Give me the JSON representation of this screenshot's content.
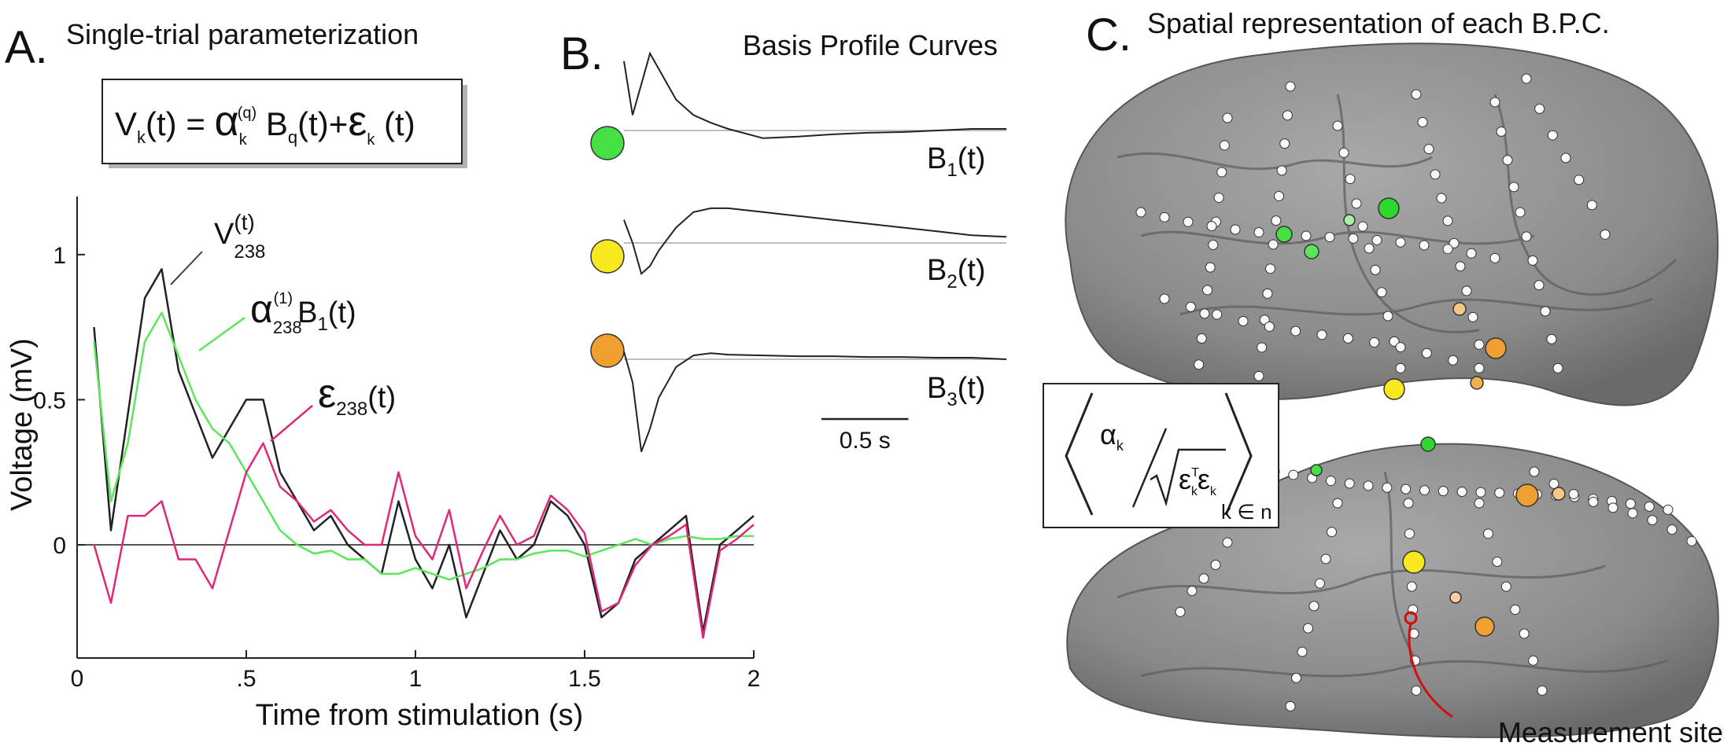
{
  "chart_data": [
    {
      "type": "line",
      "panel_label": "A.",
      "title": "Single-trial parameterization",
      "formula": [
        "V",
        "k",
        "(t) = ",
        "α",
        "k",
        "(q)",
        " B",
        "q",
        "(t)+",
        "ε",
        "k",
        " (t)"
      ],
      "x_label": "Time from stimulation (s)",
      "y_label": "Voltage (mV)",
      "xlim": [
        0,
        2
      ],
      "ylim": [
        -0.39,
        1.2
      ],
      "xticks": [
        0,
        {
          "value": 0.5,
          "label": ".5"
        },
        1,
        1.5,
        2
      ],
      "yticks": [
        0,
        0.5,
        1
      ],
      "x": [
        0.05,
        0.1,
        0.15,
        0.2,
        0.25,
        0.3,
        0.35,
        0.4,
        0.45,
        0.5,
        0.55,
        0.6,
        0.65,
        0.7,
        0.75,
        0.8,
        0.85,
        0.9,
        0.95,
        1.0,
        1.05,
        1.1,
        1.15,
        1.2,
        1.25,
        1.3,
        1.35,
        1.4,
        1.45,
        1.5,
        1.55,
        1.6,
        1.65,
        1.7,
        1.75,
        1.8,
        1.85,
        1.9,
        1.95,
        2.0
      ],
      "series": [
        {
          "color": "#222222",
          "values": [
            0.75,
            0.05,
            0.45,
            0.85,
            0.95,
            0.6,
            0.45,
            0.3,
            0.4,
            0.5,
            0.5,
            0.25,
            0.15,
            0.05,
            0.1,
            0.0,
            -0.05,
            -0.1,
            0.15,
            -0.05,
            -0.15,
            0.0,
            -0.25,
            -0.1,
            0.05,
            -0.05,
            0.0,
            0.15,
            0.1,
            0.0,
            -0.25,
            -0.2,
            -0.05,
            0.0,
            0.05,
            0.1,
            -0.3,
            0.0,
            0.05,
            0.1
          ]
        },
        {
          "color": "#5ce65c",
          "values": [
            0.7,
            0.15,
            0.35,
            0.7,
            0.8,
            0.65,
            0.5,
            0.4,
            0.35,
            0.25,
            0.15,
            0.05,
            0.0,
            -0.03,
            -0.02,
            -0.05,
            -0.05,
            -0.1,
            -0.1,
            -0.08,
            -0.1,
            -0.12,
            -0.1,
            -0.08,
            -0.05,
            -0.05,
            -0.03,
            -0.02,
            -0.02,
            -0.04,
            -0.02,
            0.0,
            0.02,
            0.0,
            0.02,
            0.03,
            0.02,
            0.02,
            0.03,
            0.03
          ]
        },
        {
          "color": "#e0287a",
          "values": [
            0.0,
            -0.2,
            0.1,
            0.1,
            0.15,
            -0.05,
            -0.05,
            -0.15,
            0.05,
            0.25,
            0.35,
            0.2,
            0.15,
            0.08,
            0.12,
            0.05,
            0.0,
            0.0,
            0.25,
            0.03,
            -0.05,
            0.12,
            -0.15,
            -0.02,
            0.1,
            0.0,
            0.03,
            0.17,
            0.12,
            0.04,
            -0.23,
            -0.2,
            -0.07,
            0.0,
            0.03,
            0.07,
            -0.32,
            -0.02,
            0.02,
            0.07
          ]
        }
      ],
      "annotations": [
        [
          "V",
          "238",
          "(t)"
        ],
        [
          "α",
          "238",
          "(1)",
          "B",
          "1",
          "(t)"
        ],
        [
          "ε",
          "238",
          "(t)"
        ]
      ]
    },
    {
      "type": "line",
      "panel_label": "B.",
      "title": "Basis Profile Curves",
      "line_color": "#222222",
      "x": [
        0,
        0.05,
        0.1,
        0.15,
        0.2,
        0.3,
        0.4,
        0.5,
        0.6,
        0.8,
        1.0,
        1.2,
        1.4,
        1.6,
        1.8,
        2.0,
        2.2
      ],
      "series": [
        {
          "color": "#44e044",
          "label_parts": [
            "B",
            "1",
            "(t)"
          ],
          "values": [
            0.9,
            0.2,
            0.6,
            1.0,
            0.8,
            0.4,
            0.2,
            0.1,
            0.02,
            -0.1,
            -0.08,
            -0.05,
            -0.03,
            -0.02,
            0.0,
            0.02,
            0.02
          ]
        },
        {
          "color": "#f8e820",
          "label_parts": [
            "B",
            "2",
            "(t)"
          ],
          "values": [
            0.3,
            0.0,
            -0.4,
            -0.3,
            -0.1,
            0.2,
            0.4,
            0.45,
            0.45,
            0.4,
            0.35,
            0.3,
            0.25,
            0.2,
            0.15,
            0.1,
            0.08
          ]
        },
        {
          "color": "#f0a030",
          "label_parts": [
            "B",
            "3",
            "(t)"
          ],
          "values": [
            0.1,
            -0.3,
            -1.2,
            -0.9,
            -0.5,
            -0.1,
            0.05,
            0.08,
            0.06,
            0.05,
            0.04,
            0.04,
            0.03,
            0.03,
            0.02,
            0.02,
            0.0
          ]
        }
      ],
      "scale_bar": {
        "length": 0.5,
        "label": "0.5 s"
      }
    }
  ],
  "panel_c": {
    "panel_label": "C.",
    "title": "Spatial representation of each B.P.C.",
    "formula": [
      "α",
      "k",
      "ε",
      "T",
      "k",
      "ε",
      "k",
      "k ∈ n"
    ],
    "annotation": "Measurement site"
  }
}
